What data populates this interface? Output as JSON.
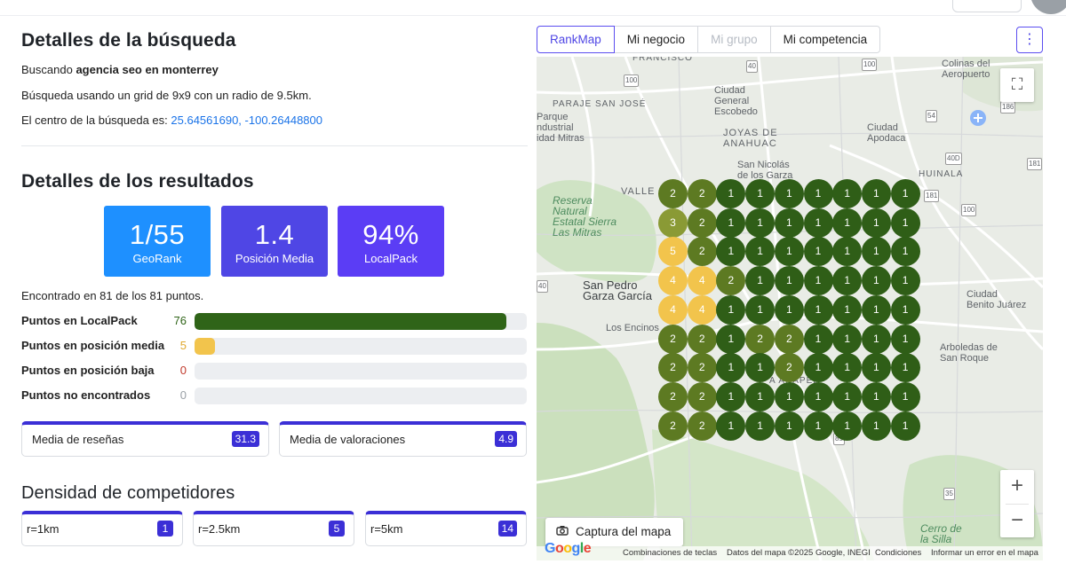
{
  "search_details": {
    "title": "Detalles de la búsqueda",
    "searching_prefix": "Buscando ",
    "query": "agencia seo en monterrey",
    "grid_text": "Búsqueda usando un grid de 9x9 con un radio de 9.5km.",
    "center_prefix": "El centro de la búsqueda es: ",
    "center_coords": "25.64561690, -100.26448800"
  },
  "results": {
    "title": "Detalles de los resultados",
    "stats": [
      {
        "value": "1/55",
        "label": "GeoRank",
        "color": "#1e90ff"
      },
      {
        "value": "1.4",
        "label": "Posición Media",
        "color": "#4f46e5"
      },
      {
        "value": "94%",
        "label": "LocalPack",
        "color": "#5b3df5"
      }
    ],
    "found_text": "Encontrado en 81 de los 81 puntos.",
    "total_points": 81,
    "bars": [
      {
        "label": "Puntos en LocalPack",
        "count": "76",
        "value": 76,
        "color": "#2f6418"
      },
      {
        "label": "Puntos en posición media",
        "count": "5",
        "value": 5,
        "color": "#f2c44c"
      },
      {
        "label": "Puntos en posición baja",
        "count": "0",
        "value": 0,
        "color": "#d9534f"
      },
      {
        "label": "Puntos no encontrados",
        "count": "0",
        "value": 0,
        "color": "#9aa0a6"
      }
    ],
    "cards": [
      {
        "label": "Media de reseñas",
        "value": "31.3"
      },
      {
        "label": "Media de valoraciones",
        "value": "4.9"
      }
    ]
  },
  "density": {
    "title": "Densidad de competidores",
    "items": [
      {
        "label": "r=1km",
        "value": "1"
      },
      {
        "label": "r=2.5km",
        "value": "5"
      },
      {
        "label": "r=5km",
        "value": "14"
      }
    ]
  },
  "tabs": [
    {
      "label": "RankMap",
      "state": "active"
    },
    {
      "label": "Mi negocio",
      "state": "normal"
    },
    {
      "label": "Mi grupo",
      "state": "disabled"
    },
    {
      "label": "Mi competencia",
      "state": "normal"
    }
  ],
  "kebab_icon": "more-vertical-icon",
  "map": {
    "rank_colors": {
      "1": "#2f5e17",
      "2": "#5d7a22",
      "3": "#8a9a35",
      "4": "#f2c44c",
      "5": "#f2c44c"
    },
    "grid": [
      [
        2,
        2,
        1,
        1,
        1,
        1,
        1,
        1,
        1
      ],
      [
        3,
        2,
        1,
        1,
        1,
        1,
        1,
        1,
        1
      ],
      [
        5,
        2,
        1,
        1,
        1,
        1,
        1,
        1,
        1
      ],
      [
        4,
        4,
        2,
        1,
        1,
        1,
        1,
        1,
        1
      ],
      [
        4,
        4,
        1,
        1,
        1,
        1,
        1,
        1,
        1
      ],
      [
        2,
        2,
        1,
        2,
        2,
        1,
        1,
        1,
        1
      ],
      [
        2,
        2,
        1,
        1,
        2,
        1,
        1,
        1,
        1
      ],
      [
        2,
        2,
        1,
        1,
        1,
        1,
        1,
        1,
        1
      ],
      [
        2,
        2,
        1,
        1,
        1,
        1,
        1,
        1,
        1
      ]
    ],
    "labels": {
      "francisco": "FRANCISCO",
      "paraje": "PARAJE SAN JOSÉ",
      "parque": "Parque\nndustrial\nidad Mitras",
      "escobedo": "Ciudad\nGeneral\nEscobedo",
      "joyas": "JOYAS DE\nANAHUAC",
      "apodaca": "Ciudad\nApodaca",
      "colinas": "Colinas del\nAeropuerto",
      "san_nicolas": "San Nicolás\nde los Garza",
      "huinala": "HUINALA",
      "valle": "VALLE",
      "reserva": "Reserva\nNatural\nEstatal Sierra\nLas Mitras",
      "san_pedro": "San Pedro\nGarza García",
      "los_encinos": "Los Encinos",
      "benito": "Ciudad\nBenito Juárez",
      "arboledas": "Arboledas de\nSan Roque",
      "cerro": "Cerro de\nla Silla",
      "anapel": "A ANAPEL",
      "r100a": "100",
      "r100b": "100",
      "r40a": "40",
      "r40b": "40",
      "r54": "54",
      "r186": "186",
      "r181": "181",
      "r40d": "40D",
      "r100c": "100",
      "r85": "85",
      "r35": "35",
      "r40e": "40",
      "r181b": "181"
    },
    "fullscreen_icon": "fullscreen-icon",
    "zoom_in": "+",
    "zoom_out": "−",
    "capture_label": "Captura del mapa",
    "capture_icon": "camera-icon",
    "google_logo": "Google",
    "footer": {
      "shortcuts": "Combinaciones de teclas",
      "data": "Datos del mapa ©2025 Google, INEGI",
      "terms": "Condiciones",
      "report": "Informar un error en el mapa"
    }
  }
}
